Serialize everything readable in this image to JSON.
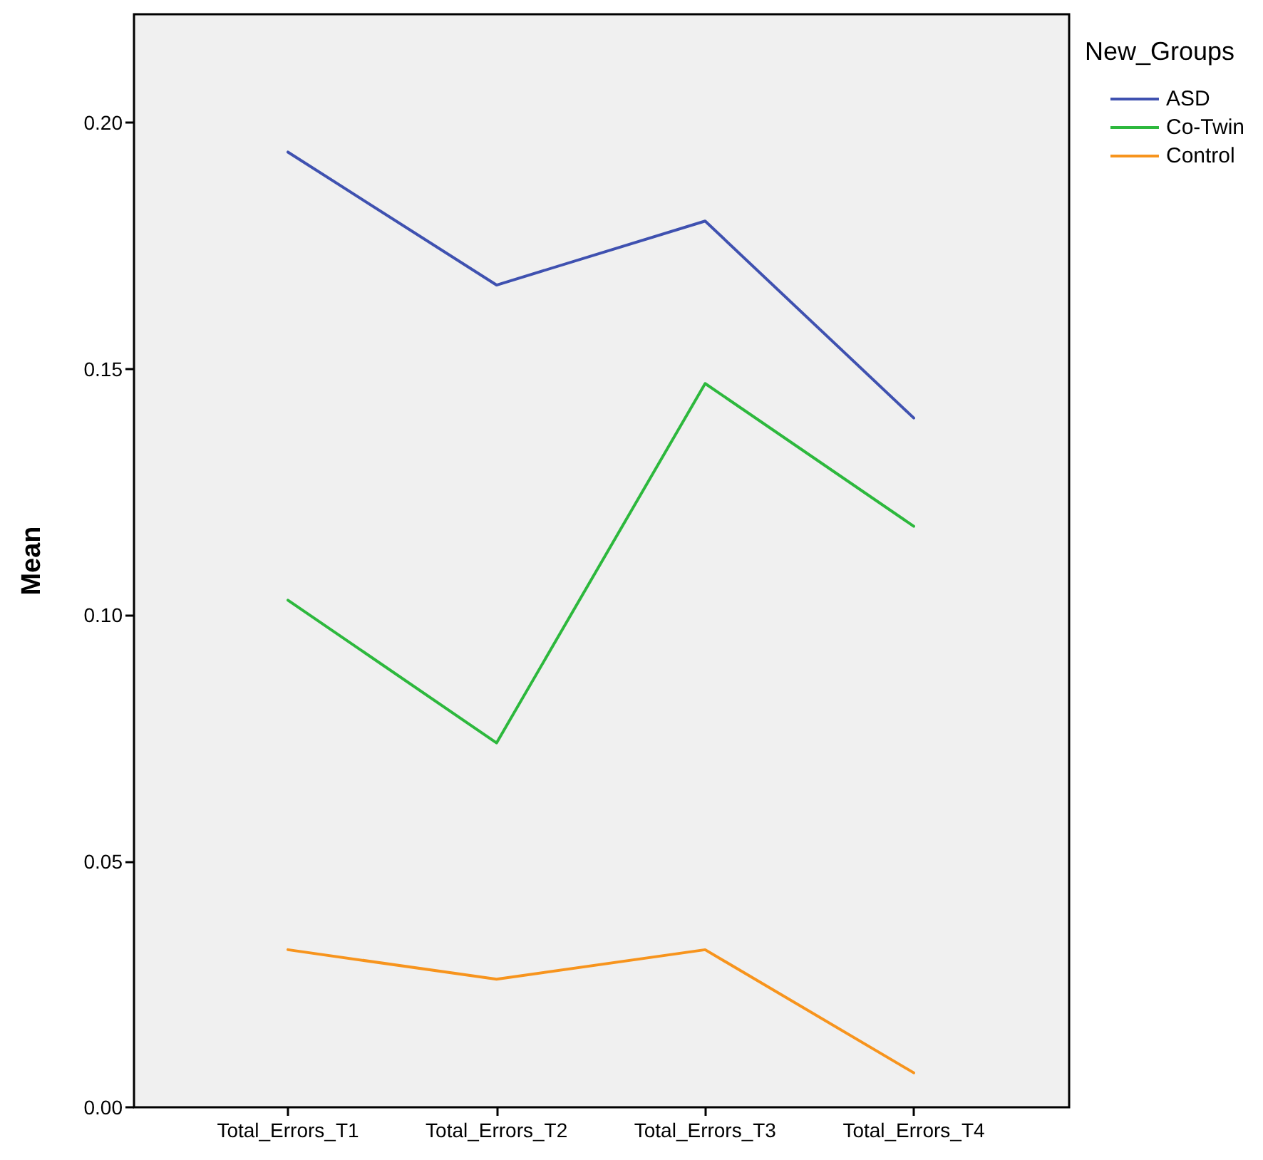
{
  "chart_data": {
    "type": "line",
    "ylabel": "Mean",
    "legend_title": "New_Groups",
    "categories": [
      "Total_Errors_T1",
      "Total_Errors_T2",
      "Total_Errors_T3",
      "Total_Errors_T4"
    ],
    "series": [
      {
        "name": "ASD",
        "color": "#3f51b0",
        "values": [
          0.194,
          0.167,
          0.18,
          0.14
        ]
      },
      {
        "name": "Co-Twin",
        "color": "#2db83d",
        "values": [
          0.103,
          0.074,
          0.147,
          0.118
        ]
      },
      {
        "name": "Control",
        "color": "#f7941d",
        "values": [
          0.032,
          0.026,
          0.032,
          0.007
        ]
      }
    ],
    "ylim": [
      0,
      0.222
    ],
    "yticks": [
      {
        "value": 0,
        "label": "0.00"
      },
      {
        "value": 0.05,
        "label": "0.05"
      },
      {
        "value": 0.1,
        "label": "0.10"
      },
      {
        "value": 0.15,
        "label": "0.15"
      },
      {
        "value": 0.2,
        "label": "0.20"
      }
    ],
    "grid": false,
    "legend": "top right",
    "marker": "none",
    "line_style": "solid"
  }
}
